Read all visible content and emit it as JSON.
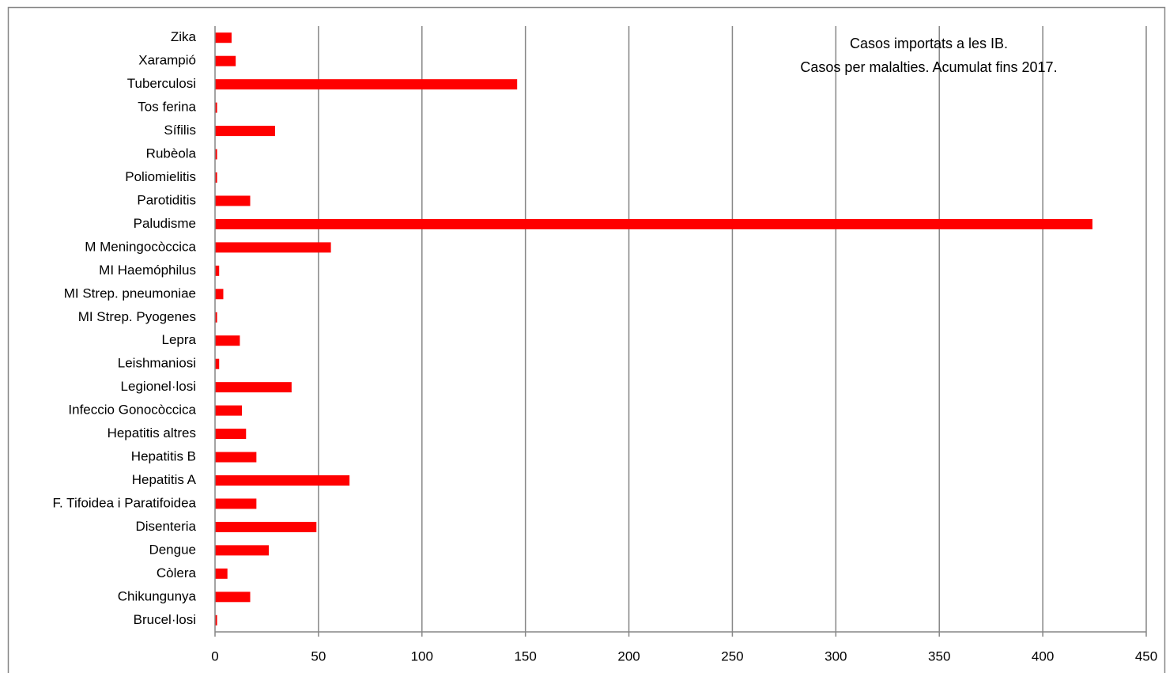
{
  "chart_data": {
    "type": "bar",
    "orientation": "horizontal",
    "title_lines": [
      "Casos importats a les IB.",
      "Casos per malalties. Acumulat fins  2017."
    ],
    "xlabel": "",
    "ylabel": "",
    "xlim": [
      0,
      450
    ],
    "x_ticks": [
      0,
      50,
      100,
      150,
      200,
      250,
      300,
      350,
      400,
      450
    ],
    "grid": "vertical",
    "legend": "none",
    "bar_color": "#ff0000",
    "categories": [
      "Zika",
      "Xarampió",
      "Tuberculosi",
      "Tos ferina",
      "Sífilis",
      "Rubèola",
      "Poliomielitis",
      "Parotiditis",
      "Paludisme",
      "M Meningocòccica",
      "MI Haemóphilus",
      "MI Strep. pneumoniae",
      "MI Strep. Pyogenes",
      "Lepra",
      "Leishmaniosi",
      "Legionel·losi",
      "Infeccio Gonocòccica",
      "Hepatitis altres",
      "Hepatitis B",
      "Hepatitis A",
      "F. Tifoidea i Paratifoidea",
      "Disenteria",
      "Dengue",
      "Còlera",
      "Chikungunya",
      "Brucel·losi"
    ],
    "values": [
      8,
      10,
      146,
      1,
      29,
      1,
      1,
      17,
      424,
      56,
      2,
      4,
      1,
      12,
      2,
      37,
      13,
      15,
      20,
      65,
      20,
      49,
      26,
      6,
      17,
      1
    ]
  }
}
